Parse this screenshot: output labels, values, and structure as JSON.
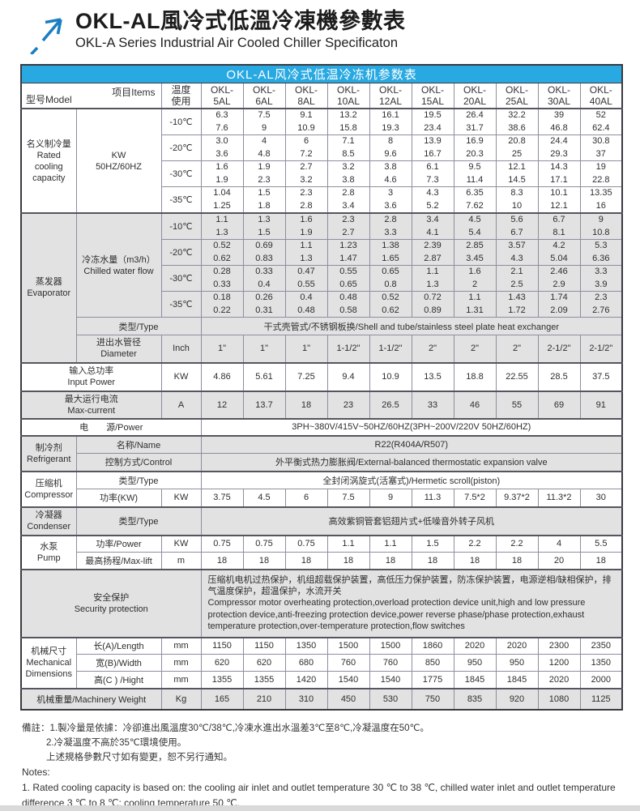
{
  "header": {
    "title_zh": "OKL-AL風冷式低溫冷凍機參數表",
    "title_en": "OKL-A Series Industrial Air Cooled Chiller Specificaton",
    "logo_color": "#1b7ec1"
  },
  "table": {
    "title": "OKL-AL风冷式低温冷冻机参数表",
    "title_bg": "#29a9e1",
    "corner": {
      "model": "型号Model",
      "items": "项目Items"
    },
    "temp_header_lines": [
      "温度",
      "使用"
    ],
    "model_prefix": "OKL-",
    "models": [
      "5AL",
      "6AL",
      "8AL",
      "10AL",
      "12AL",
      "15AL",
      "20AL",
      "25AL",
      "30AL",
      "40AL"
    ]
  },
  "capacity": {
    "name_lines": [
      "名义制冷量",
      "Rated",
      "cooling",
      "capacity"
    ],
    "unit_lines": [
      "KW",
      "50HZ/60HZ"
    ],
    "rows": [
      {
        "temp": "-10℃",
        "top": [
          "6.3",
          "7.5",
          "9.1",
          "13.2",
          "16.1",
          "19.5",
          "26.4",
          "32.2",
          "39",
          "52"
        ],
        "bottom": [
          "7.6",
          "9",
          "10.9",
          "15.8",
          "19.3",
          "23.4",
          "31.7",
          "38.6",
          "46.8",
          "62.4"
        ]
      },
      {
        "temp": "-20℃",
        "top": [
          "3.0",
          "4",
          "6",
          "7.1",
          "8",
          "13.9",
          "16.9",
          "20.8",
          "24.4",
          "30.8"
        ],
        "bottom": [
          "3.6",
          "4.8",
          "7.2",
          "8.5",
          "9.6",
          "16.7",
          "20.3",
          "25",
          "29.3",
          "37"
        ]
      },
      {
        "temp": "-30℃",
        "top": [
          "1.6",
          "1.9",
          "2.7",
          "3.2",
          "3.8",
          "6.1",
          "9.5",
          "12.1",
          "14.3",
          "19"
        ],
        "bottom": [
          "1.9",
          "2.3",
          "3.2",
          "3.8",
          "4.6",
          "7.3",
          "11.4",
          "14.5",
          "17.1",
          "22.8"
        ]
      },
      {
        "temp": "-35℃",
        "top": [
          "1.04",
          "1.5",
          "2.3",
          "2.8",
          "3",
          "4.3",
          "6.35",
          "8.3",
          "10.1",
          "13.35"
        ],
        "bottom": [
          "1.25",
          "1.8",
          "2.8",
          "3.4",
          "3.6",
          "5.2",
          "7.62",
          "10",
          "12.1",
          "16"
        ]
      }
    ]
  },
  "evaporator": {
    "name_lines": [
      "蒸发器",
      "Evaporator"
    ],
    "flow_label_lines": [
      "冷冻水量（m3/h）",
      "Chilled water flow"
    ],
    "rows": [
      {
        "temp": "-10℃",
        "top": [
          "1.1",
          "1.3",
          "1.6",
          "2.3",
          "2.8",
          "3.4",
          "4.5",
          "5.6",
          "6.7",
          "9"
        ],
        "bottom": [
          "1.3",
          "1.5",
          "1.9",
          "2.7",
          "3.3",
          "4.1",
          "5.4",
          "6.7",
          "8.1",
          "10.8"
        ]
      },
      {
        "temp": "-20℃",
        "top": [
          "0.52",
          "0.69",
          "1.1",
          "1.23",
          "1.38",
          "2.39",
          "2.85",
          "3.57",
          "4.2",
          "5.3"
        ],
        "bottom": [
          "0.62",
          "0.83",
          "1.3",
          "1.47",
          "1.65",
          "2.87",
          "3.45",
          "4.3",
          "5.04",
          "6.36"
        ]
      },
      {
        "temp": "-30℃",
        "top": [
          "0.28",
          "0.33",
          "0.47",
          "0.55",
          "0.65",
          "1.1",
          "1.6",
          "2.1",
          "2.46",
          "3.3"
        ],
        "bottom": [
          "0.33",
          "0.4",
          "0.55",
          "0.65",
          "0.8",
          "1.3",
          "2",
          "2.5",
          "2.9",
          "3.9"
        ]
      },
      {
        "temp": "-35℃",
        "top": [
          "0.18",
          "0.26",
          "0.4",
          "0.48",
          "0.52",
          "0.72",
          "1.1",
          "1.43",
          "1.74",
          "2.3"
        ],
        "bottom": [
          "0.22",
          "0.31",
          "0.48",
          "0.58",
          "0.62",
          "0.89",
          "1.31",
          "1.72",
          "2.09",
          "2.76"
        ]
      }
    ],
    "type_label": "类型/Type",
    "type_value": "干式壳管式/不锈钢板换/Shell and tube/stainless steel plate heat exchanger",
    "diameter_label_lines": [
      "进出水管径",
      "Diameter"
    ],
    "diameter_unit": "Inch",
    "diameter_values": [
      "1\"",
      "1\"",
      "1\"",
      "1-1/2\"",
      "1-1/2\"",
      "2\"",
      "2\"",
      "2\"",
      "2-1/2\"",
      "2-1/2\""
    ]
  },
  "input_power": {
    "label_lines": [
      "输入总功率",
      "Input Power"
    ],
    "unit": "KW",
    "values": [
      "4.86",
      "5.61",
      "7.25",
      "9.4",
      "10.9",
      "13.5",
      "18.8",
      "22.55",
      "28.5",
      "37.5"
    ]
  },
  "max_current": {
    "label_lines": [
      "最大运行电流",
      "Max-current"
    ],
    "unit": "A",
    "values": [
      "12",
      "13.7",
      "18",
      "23",
      "26.5",
      "33",
      "46",
      "55",
      "69",
      "91"
    ]
  },
  "power_supply": {
    "label": "电　　源/Power",
    "value": "3PH~380V/415V~50HZ/60HZ(3PH~200V/220V  50HZ/60HZ)"
  },
  "refrigerant": {
    "name_lines": [
      "制冷剂",
      "Refrigerant"
    ],
    "name_label": "名称/Name",
    "name_value": "R22(R404A/R507)",
    "control_label": "控制方式/Control",
    "control_value": "外平衡式热力膨胀阀/External-balanced thermostatic expansion valve"
  },
  "compressor": {
    "name_lines": [
      "压缩机",
      "Compressor"
    ],
    "type_label": "类型/Type",
    "type_value": "全封闭涡旋式(活塞式)/Hermetic scroll(piston)",
    "power_label": "功率(KW)",
    "power_unit": "KW",
    "power_values": [
      "3.75",
      "4.5",
      "6",
      "7.5",
      "9",
      "11.3",
      "7.5*2",
      "9.37*2",
      "11.3*2",
      "30"
    ]
  },
  "condenser": {
    "name_lines": [
      "冷凝器",
      "Condenser"
    ],
    "type_label": "类型/Type",
    "type_value": "高效紫铜管套铝翅片式+低噪音外转子风机"
  },
  "pump": {
    "name_lines": [
      "水泵",
      "Pump"
    ],
    "power_label": "功率/Power",
    "power_unit": "KW",
    "power_values": [
      "0.75",
      "0.75",
      "0.75",
      "1.1",
      "1.1",
      "1.5",
      "2.2",
      "2.2",
      "4",
      "5.5"
    ],
    "lift_label": "最高扬程/Max-lift",
    "lift_unit": "m",
    "lift_values": [
      "18",
      "18",
      "18",
      "18",
      "18",
      "18",
      "18",
      "18",
      "20",
      "18"
    ]
  },
  "security": {
    "label_lines": [
      "安全保护",
      "Security protection"
    ],
    "text_zh": "压缩机电机过热保护，机组超载保护装置，高低压力保护装置，防冻保护装置，电源逆相/缺相保护，排气温度保护，超温保护，水流开关",
    "text_en": "Compressor motor overheating protection,overload protection device unit,high and low pressure protection device,anti-freezing protection device,power reverse phase/phase protection,exhaust temperature protection,over-temperature protection,flow switches"
  },
  "dimensions": {
    "name_lines": [
      "机械尺寸",
      "Mechanical",
      "Dimensions"
    ],
    "length_label": "长(A)/Length",
    "length_unit": "mm",
    "length_values": [
      "1150",
      "1150",
      "1350",
      "1500",
      "1500",
      "1860",
      "2020",
      "2020",
      "2300",
      "2350"
    ],
    "width_label": "宽(B)/Width",
    "width_unit": "mm",
    "width_values": [
      "620",
      "620",
      "680",
      "760",
      "760",
      "850",
      "950",
      "950",
      "1200",
      "1350"
    ],
    "height_label": "高(C ) /Hight",
    "height_unit": "mm",
    "height_values": [
      "1355",
      "1355",
      "1420",
      "1540",
      "1540",
      "1775",
      "1845",
      "1845",
      "2020",
      "2000"
    ]
  },
  "weight": {
    "label": "机械重量/Machinery Weight",
    "unit": "Kg",
    "values": [
      "165",
      "210",
      "310",
      "450",
      "530",
      "750",
      "835",
      "920",
      "1080",
      "1125"
    ]
  },
  "notes": {
    "line1": "備註：1.製冷量是依據：冷卻進出風溫度30℃/38℃,冷凍水進出水溫差3℃至8℃,冷凝溫度在50℃。",
    "line2": "2.冷凝溫度不高於35℃環境使用。",
    "line3": "上述規格參數尺寸如有變更，恕不另行通知。",
    "line4": "Notes:",
    "line5": "1. Rated cooling capacity is based on: the cooling air inlet and outlet temperature 30 ℃ to 38 ℃, chilled water inlet and outlet temperature difference 3 ℃ to 8 ℃; cooling temperature 50 ℃."
  }
}
